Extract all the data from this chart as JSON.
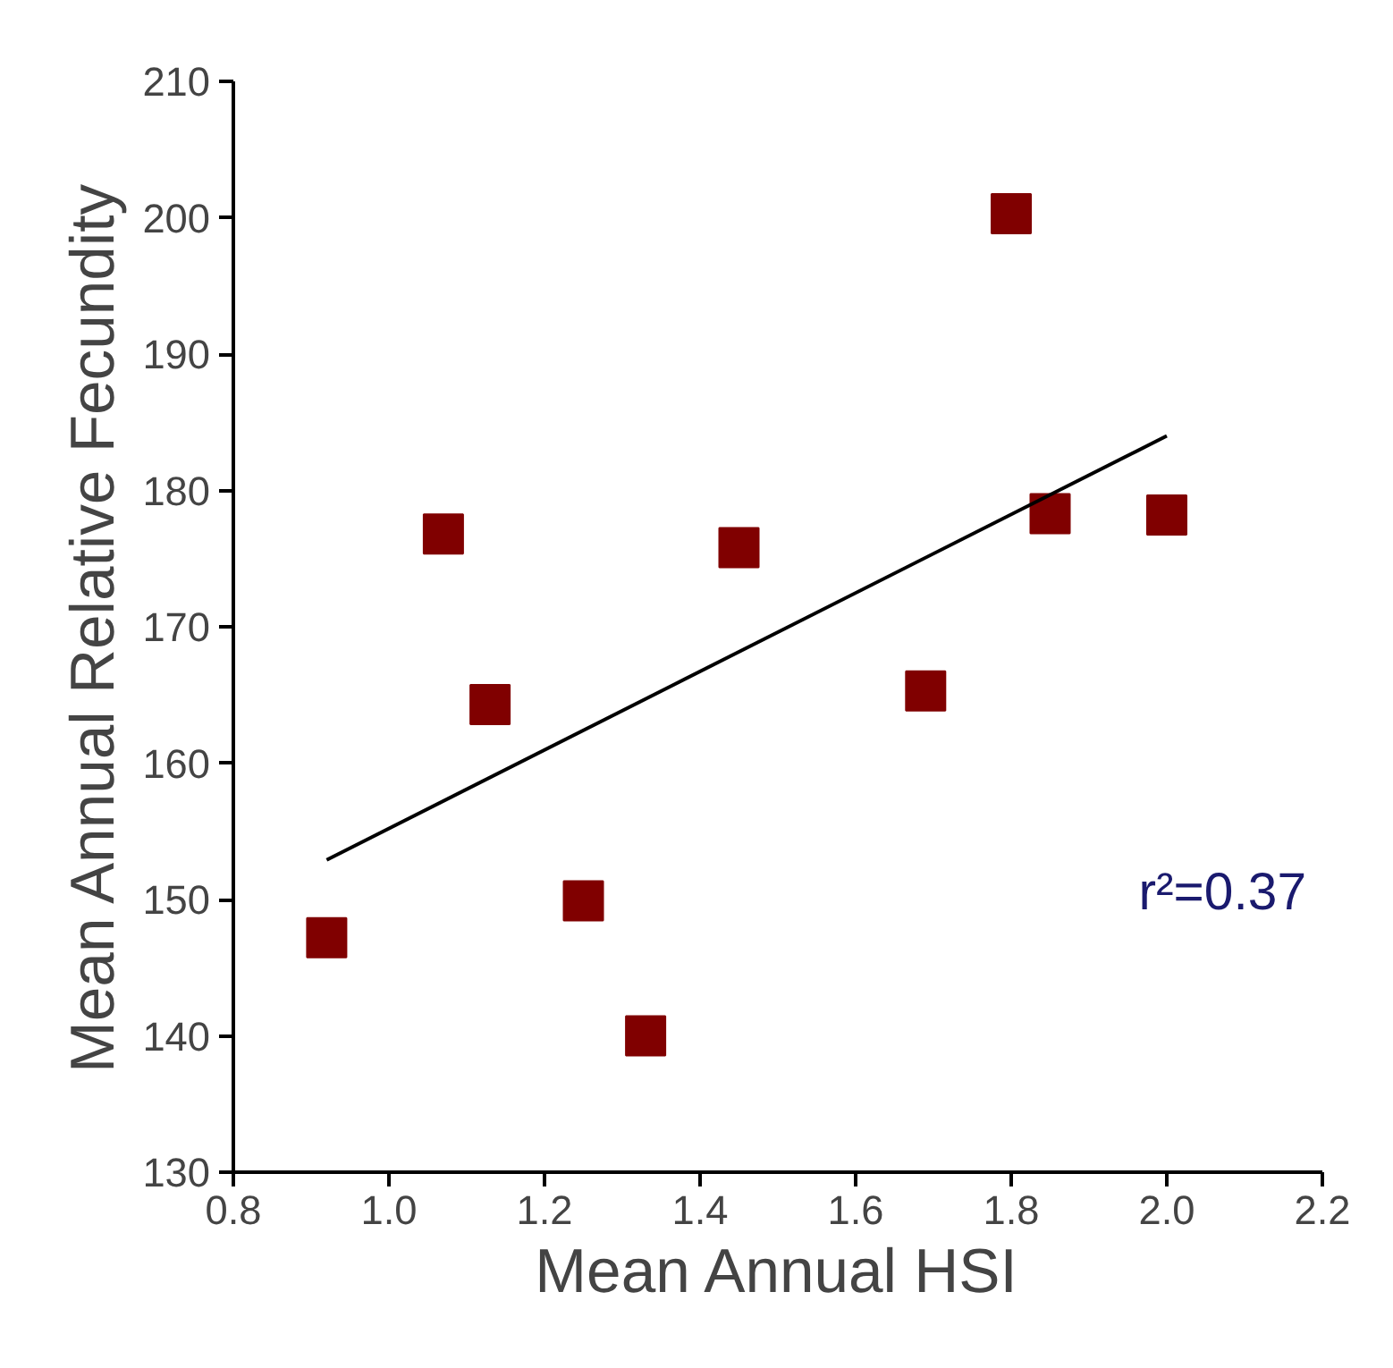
{
  "chart_data": {
    "type": "scatter",
    "xlabel": "Mean Annual HSI",
    "ylabel": "Mean Annual Relative Fecundity",
    "xlim": [
      0.8,
      2.2
    ],
    "xticks": [
      {
        "value": 0.8,
        "label": "0.8"
      },
      {
        "value": 1.0,
        "label": "1.0"
      },
      {
        "value": 1.2,
        "label": "1.2"
      },
      {
        "value": 1.4,
        "label": "1.4"
      },
      {
        "value": 1.6,
        "label": "1.6"
      },
      {
        "value": 1.8,
        "label": "1.8"
      },
      {
        "value": 2.0,
        "label": "2.0"
      },
      {
        "value": 2.2,
        "label": "2.2"
      }
    ],
    "ylim": [
      130,
      210
    ],
    "yticks": [
      130,
      140,
      150,
      160,
      170,
      180,
      190,
      200,
      210
    ],
    "grid": false,
    "series": [
      {
        "marker": "square",
        "color": "#800000",
        "x": [
          0.92,
          1.07,
          1.13,
          1.25,
          1.33,
          1.45,
          1.69,
          1.8,
          1.85,
          2.0
        ],
        "values": [
          147.2,
          176.8,
          164.3,
          149.9,
          140.0,
          175.8,
          165.3,
          200.3,
          178.3,
          178.2
        ]
      },
      {
        "type": "line",
        "color": "#000000",
        "x": [
          0.92,
          2.0
        ],
        "values": [
          152.9,
          184.0
        ]
      }
    ],
    "annotations": [
      "r²=0.37"
    ]
  }
}
